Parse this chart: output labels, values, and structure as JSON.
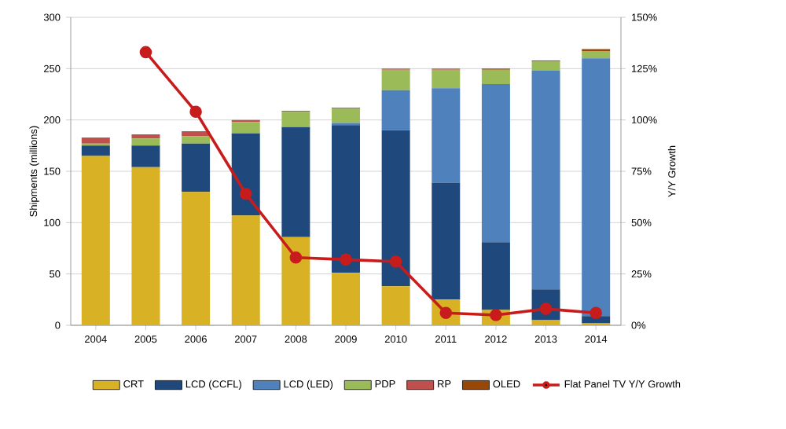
{
  "chart_data": {
    "type": "bar",
    "stacked": true,
    "ylabel": "Shipments (millions)",
    "y2label": "Y/Y Growth",
    "categories": [
      "2004",
      "2005",
      "2006",
      "2007",
      "2008",
      "2009",
      "2010",
      "2011",
      "2012",
      "2013",
      "2014"
    ],
    "series": [
      {
        "name": "CRT",
        "color": "#d8b125",
        "values": [
          165,
          154,
          130,
          107,
          86,
          51,
          38,
          25,
          15,
          5,
          2
        ]
      },
      {
        "name": "LCD (CCFL)",
        "color": "#1f497d",
        "values": [
          10,
          21,
          47,
          80,
          107,
          144,
          152,
          114,
          66,
          30,
          7
        ]
      },
      {
        "name": "LCD (LED)",
        "color": "#4f81bd",
        "values": [
          0,
          0,
          0,
          0,
          0,
          2,
          39,
          92,
          154,
          213,
          251
        ]
      },
      {
        "name": "PDP",
        "color": "#9bbb59",
        "values": [
          2,
          7,
          7,
          11,
          15,
          14,
          20,
          18,
          14,
          9,
          7
        ]
      },
      {
        "name": "RP",
        "color": "#c0504d",
        "values": [
          6,
          4,
          5,
          2,
          1,
          1,
          1,
          1,
          0,
          0,
          0
        ]
      },
      {
        "name": "OLED",
        "color": "#974806",
        "values": [
          0,
          0,
          0,
          0,
          0,
          0,
          0,
          0,
          1,
          1,
          2
        ]
      },
      {
        "name": "Flat Panel TV Y/Y Growth",
        "type": "line",
        "axis": "y2",
        "color": "#c81c1c",
        "marker": "circle",
        "values": [
          null,
          133,
          104,
          64,
          33,
          32,
          31,
          6,
          5,
          8,
          6
        ]
      }
    ],
    "ylim": [
      0,
      300
    ],
    "yticks": [
      0,
      50,
      100,
      150,
      200,
      250,
      300
    ],
    "y2lim": [
      0,
      150
    ],
    "y2ticks": [
      {
        "value": 0,
        "label": "0%"
      },
      {
        "value": 25,
        "label": "25%"
      },
      {
        "value": 50,
        "label": "50%"
      },
      {
        "value": 75,
        "label": "75%"
      },
      {
        "value": 100,
        "label": "100%"
      },
      {
        "value": 125,
        "label": "125%"
      },
      {
        "value": 150,
        "label": "150%"
      }
    ],
    "grid": "y",
    "legend": "bottom"
  }
}
